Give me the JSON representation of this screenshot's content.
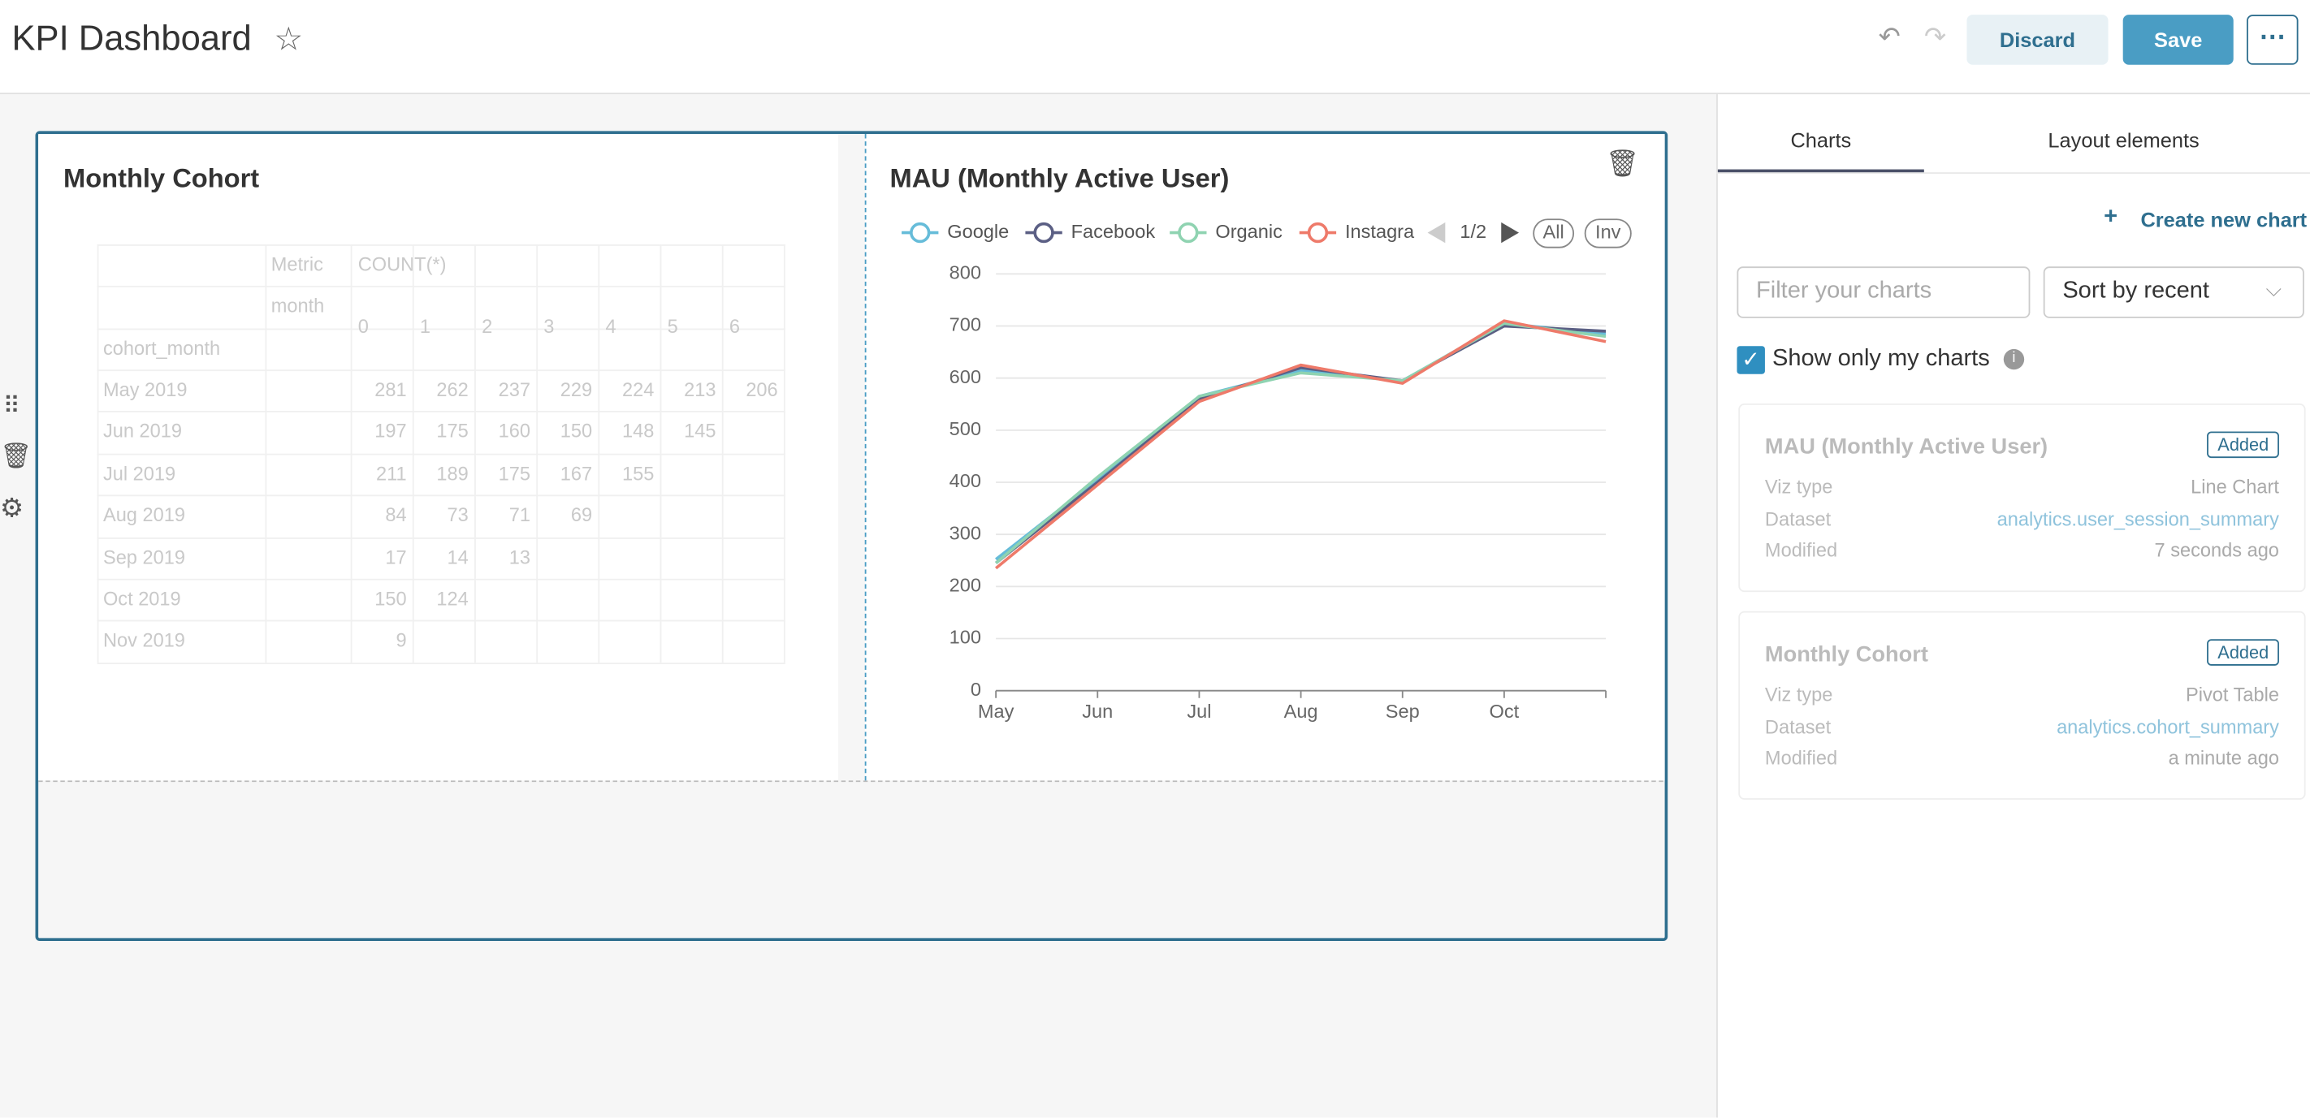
{
  "header": {
    "title": "KPI Dashboard",
    "discard": "Discard",
    "save": "Save"
  },
  "cohort": {
    "title": "Monthly Cohort",
    "table": {
      "metric_label": "Metric",
      "metric": "COUNT(*)",
      "column_label": "month",
      "row_label": "cohort_month",
      "columns": [
        0,
        1,
        2,
        3,
        4,
        5,
        6
      ],
      "rows": [
        {
          "label": "May 2019",
          "values": [
            281,
            262,
            237,
            229,
            224,
            213,
            206
          ]
        },
        {
          "label": "Jun 2019",
          "values": [
            197,
            175,
            160,
            150,
            148,
            145
          ]
        },
        {
          "label": "Jul 2019",
          "values": [
            211,
            189,
            175,
            167,
            155
          ]
        },
        {
          "label": "Aug 2019",
          "values": [
            84,
            73,
            71,
            69
          ]
        },
        {
          "label": "Sep 2019",
          "values": [
            17,
            14,
            13
          ]
        },
        {
          "label": "Oct 2019",
          "values": [
            150,
            124
          ]
        },
        {
          "label": "Nov 2019",
          "values": [
            9
          ]
        }
      ]
    }
  },
  "chart_data": {
    "type": "line",
    "title": "MAU (Monthly Active User)",
    "categories": [
      "May",
      "Jun",
      "Jul",
      "Aug",
      "Sep",
      "Oct",
      null
    ],
    "series": [
      {
        "name": "Google",
        "color": "#66bcd9",
        "values": [
          252,
          405,
          565,
          615,
          595,
          705,
          685
        ]
      },
      {
        "name": "Facebook",
        "color": "#5b5f84",
        "values": [
          245,
          400,
          560,
          620,
          595,
          700,
          690
        ]
      },
      {
        "name": "Organic",
        "color": "#8fd3b1",
        "values": [
          245,
          410,
          565,
          610,
          595,
          705,
          680
        ]
      },
      {
        "name": "Instagra",
        "color": "#ee7a6a",
        "values": [
          235,
          395,
          555,
          625,
          590,
          710,
          670
        ]
      }
    ],
    "ylim": [
      0,
      800
    ],
    "yticks": [
      0,
      100,
      200,
      300,
      400,
      500,
      600,
      700,
      800
    ],
    "grid": true,
    "legend_page": "1/2",
    "legend_buttons": [
      "All",
      "Inv"
    ]
  },
  "panel": {
    "tabs": [
      "Charts",
      "Layout elements"
    ],
    "create": "Create new chart",
    "filter_placeholder": "Filter your charts",
    "sort": "Sort by recent",
    "only_mine": "Show only my charts",
    "cards": [
      {
        "title": "MAU (Monthly Active User)",
        "badge": "Added",
        "rows": [
          [
            "Viz type",
            "Line Chart"
          ],
          [
            "Dataset",
            "analytics.user_session_summary"
          ],
          [
            "Modified",
            "7 seconds ago"
          ]
        ]
      },
      {
        "title": "Monthly Cohort",
        "badge": "Added",
        "rows": [
          [
            "Viz type",
            "Pivot Table"
          ],
          [
            "Dataset",
            "analytics.cohort_summary"
          ],
          [
            "Modified",
            "a minute ago"
          ]
        ]
      }
    ]
  }
}
